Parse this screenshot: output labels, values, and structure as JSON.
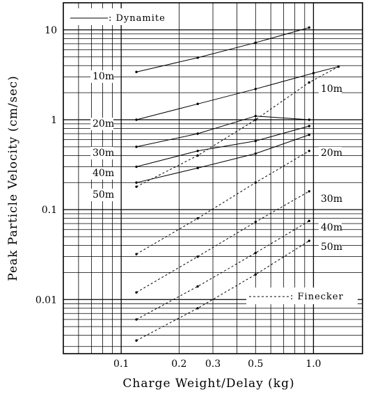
{
  "chart_data": {
    "type": "line",
    "x_scale": "log",
    "y_scale": "log",
    "xlim": [
      0.05,
      1.8
    ],
    "ylim": [
      0.0025,
      20
    ],
    "xlabel": "Charge Weight/Delay (kg)",
    "ylabel": "Peak Particle Velocity (cm/sec)",
    "x_ticks": [
      {
        "value": 0.1,
        "label": "0.1"
      },
      {
        "value": 0.2,
        "label": "0.2"
      },
      {
        "value": 0.3,
        "label": "0.3"
      },
      {
        "value": 0.5,
        "label": "0.5"
      },
      {
        "value": 1.0,
        "label": "1.0"
      }
    ],
    "y_ticks": [
      {
        "value": 10,
        "label": "10"
      },
      {
        "value": 1,
        "label": "1"
      },
      {
        "value": 0.1,
        "label": "0.1"
      },
      {
        "value": 0.01,
        "label": "0.01"
      }
    ],
    "grid": true,
    "legend": [
      {
        "label": ": Dynamite",
        "style": "solid",
        "position": "top-left"
      },
      {
        "label": ": Finecker",
        "style": "dashed",
        "position": "bottom-right"
      }
    ],
    "dynamite_labels": [
      "10m",
      "20m",
      "30m",
      "40m",
      "50m"
    ],
    "finecker_labels": [
      "10m",
      "20m",
      "30m",
      "40m",
      "50m"
    ],
    "series": [
      {
        "group": "Dynamite",
        "label": "10m",
        "style": "solid",
        "x": [
          0.12,
          0.25,
          0.5,
          0.95
        ],
        "y": [
          3.4,
          4.9,
          7.2,
          10.6
        ]
      },
      {
        "group": "Dynamite",
        "label": "20m",
        "style": "solid",
        "x": [
          0.12,
          0.25,
          0.5,
          1.0,
          1.35
        ],
        "y": [
          1.0,
          1.5,
          2.2,
          3.3,
          3.9
        ]
      },
      {
        "group": "Dynamite",
        "label": "30m",
        "style": "solid",
        "x": [
          0.12,
          0.25,
          0.5,
          0.95
        ],
        "y": [
          0.5,
          0.7,
          1.1,
          1.0
        ]
      },
      {
        "group": "Dynamite",
        "label": "40m",
        "style": "solid",
        "x": [
          0.12,
          0.25,
          0.5,
          0.95
        ],
        "y": [
          0.3,
          0.45,
          0.58,
          0.85
        ]
      },
      {
        "group": "Dynamite",
        "label": "50m",
        "style": "solid",
        "x": [
          0.12,
          0.25,
          0.5,
          0.95
        ],
        "y": [
          0.2,
          0.29,
          0.42,
          0.68
        ]
      },
      {
        "group": "Finecker",
        "label": "10m",
        "style": "dashed",
        "x": [
          0.12,
          0.25,
          0.5,
          0.95,
          1.35
        ],
        "y": [
          0.18,
          0.4,
          1.0,
          2.6,
          3.9
        ]
      },
      {
        "group": "Finecker",
        "label": "20m",
        "style": "dashed",
        "x": [
          0.12,
          0.25,
          0.5,
          0.95
        ],
        "y": [
          0.032,
          0.08,
          0.2,
          0.45
        ]
      },
      {
        "group": "Finecker",
        "label": "30m",
        "style": "dashed",
        "x": [
          0.12,
          0.25,
          0.5,
          0.95
        ],
        "y": [
          0.012,
          0.03,
          0.073,
          0.16
        ]
      },
      {
        "group": "Finecker",
        "label": "40m",
        "style": "dashed",
        "x": [
          0.12,
          0.25,
          0.5,
          0.95
        ],
        "y": [
          0.006,
          0.014,
          0.033,
          0.075
        ]
      },
      {
        "group": "Finecker",
        "label": "50m",
        "style": "dashed",
        "x": [
          0.12,
          0.25,
          0.5,
          0.95
        ],
        "y": [
          0.0035,
          0.008,
          0.019,
          0.045
        ]
      }
    ]
  }
}
